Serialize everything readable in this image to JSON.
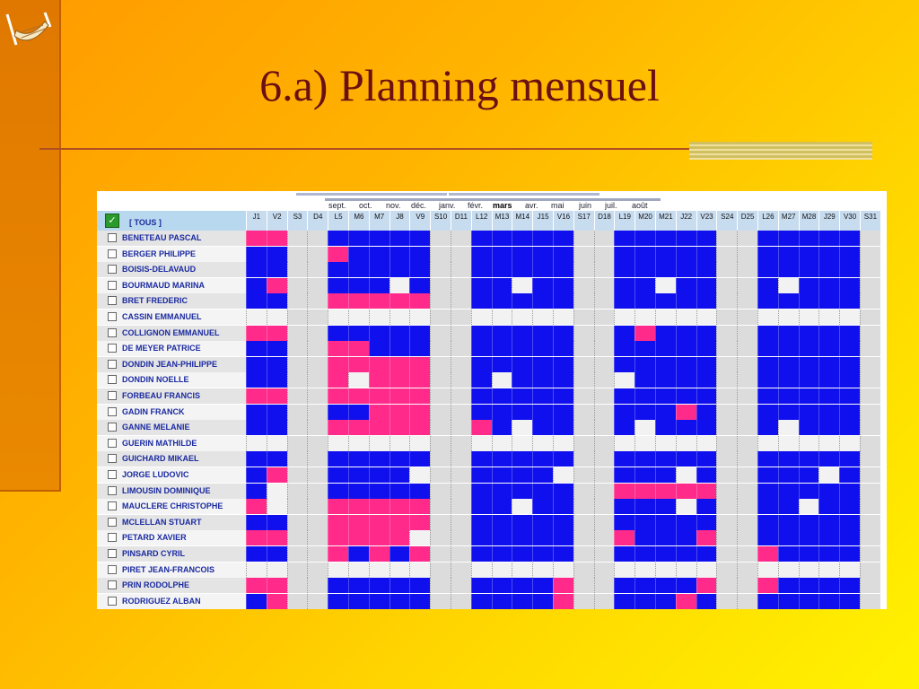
{
  "slide": {
    "title": "6.a) Planning mensuel"
  },
  "months": [
    "sept.",
    "oct.",
    "nov.",
    "déc.",
    "janv.",
    "févr.",
    "mars",
    "avr.",
    "mai",
    "juin",
    "juil.",
    "août"
  ],
  "active_month": "mars",
  "select_all_label": "[ TOUS ]",
  "days": [
    "J1",
    "V2",
    "S3",
    "D4",
    "L5",
    "M6",
    "M7",
    "J8",
    "V9",
    "S10",
    "D11",
    "L12",
    "M13",
    "M14",
    "J15",
    "V16",
    "S17",
    "D18",
    "L19",
    "M20",
    "M21",
    "J22",
    "V23",
    "S24",
    "D25",
    "L26",
    "M27",
    "M28",
    "J29",
    "V30",
    "S31"
  ],
  "weekend_indices": [
    2,
    3,
    9,
    10,
    16,
    17,
    23,
    24,
    30
  ],
  "colors": {
    "work": "#1010ee",
    "leave": "#ff2a8a",
    "free": "#f2f2f2",
    "weekend": "#dcdcdc",
    "name_bg_a": "#e4e4e4",
    "name_bg_b": "#f4f4f4"
  },
  "people": [
    {
      "name": "BENETEAU PASCAL",
      "row": "PPPPWWWWWWWWWWWWWWWWWWWWWWWWWWW"
    },
    {
      "name": "BERGER PHILIPPE",
      "row": "WWWWPWWWWWWWWWWWWWWWWWWWWWWWWWW"
    },
    {
      "name": "BOISIS-DELAVAUD",
      "row": "WWWWWWWWWWWWWWWWWWWWWWWWWWWWWWW"
    },
    {
      "name": "BOURMAUD MARINA",
      "row": "WPPPWWWFWWWWWFWWWWWWFWWWWWFWWWW"
    },
    {
      "name": "BRET FREDERIC",
      "row": "WWWWPPPPPWWWWWWWWWWWWWWWWWWWWWW"
    },
    {
      "name": "CASSIN EMMANUEL",
      "row": "FFFFFFFFFFFFFFFFFFFFFFFFFFFFFFF"
    },
    {
      "name": "COLLIGNON EMMANUEL",
      "row": "PPPPWWWWWWWWWWWWWWWPWWWWWWWWWWW"
    },
    {
      "name": "DE MEYER PATRICE",
      "row": "WWWWPPWWWWWWWWWWWWWWWWWWWWWWWWW"
    },
    {
      "name": "DONDIN JEAN-PHILIPPE",
      "row": "WWWWPPPPPWWWWWWWWWWWWWWWWWWWWWW"
    },
    {
      "name": "DONDIN NOELLE",
      "row": "WWWWPFPPPWWWFWWWWWFWWWWWFWWWWWW"
    },
    {
      "name": "FORBEAU FRANCIS",
      "row": "PPPPPPPPPWWWWWWWWWWWWWWWWWWWWWW"
    },
    {
      "name": "GADIN FRANCK",
      "row": "WWWWWWPPPWWWWWWWWWWWWPWWWWWWWWF"
    },
    {
      "name": "GANNE MELANIE",
      "row": "WWWWPPPPPWWPWFWWWWWFWWWWWWFWWWW"
    },
    {
      "name": "GUERIN MATHILDE",
      "row": "FFFFFFFFFFFFFFFFFFFFFFFFFFFFFFF"
    },
    {
      "name": "GUICHARD MIKAEL",
      "row": "WWWWWWWWWWWWWWWWWWWWWWWWWWWWWWW"
    },
    {
      "name": "JORGE LUDOVIC",
      "row": "WPFWWWWWFWWWWWWFWWWWWFWWWWWWFWW"
    },
    {
      "name": "LIMOUSIN DOMINIQUE",
      "row": "WFWWWWWWWWWWWWWWWWPPPPPWWWWWWWW"
    },
    {
      "name": "MAUCLERE CHRISTOPHE",
      "row": "PFPPPPPPPWWWWFWWWWWWWFWWWWWFWWW"
    },
    {
      "name": "MCLELLAN STUART",
      "row": "WWWWPPPPPWWWWWWWWWWWWWWWWWWWWWW"
    },
    {
      "name": "PETARD XAVIER",
      "row": "PPPFPPPPFWWWWWWWWWPWWWPWWWWWWWW"
    },
    {
      "name": "PINSARD CYRIL",
      "row": "WWWWPWPWPWWWWWWWWWWWWWWWWPWWWWW"
    },
    {
      "name": "PIRET JEAN-FRANCOIS",
      "row": "FFFFFFFFFFFFFFFFFFFFFFFFFFFFFFF"
    },
    {
      "name": "PRIN RODOLPHE",
      "row": "PPPPWWWWWWWWWWWPWWWWWWPWWPWWWWW"
    },
    {
      "name": "RODRIGUEZ ALBAN",
      "row": "WPWWWWWWWWWWWWWPWWWWWPWWWWWWWWW"
    }
  ]
}
